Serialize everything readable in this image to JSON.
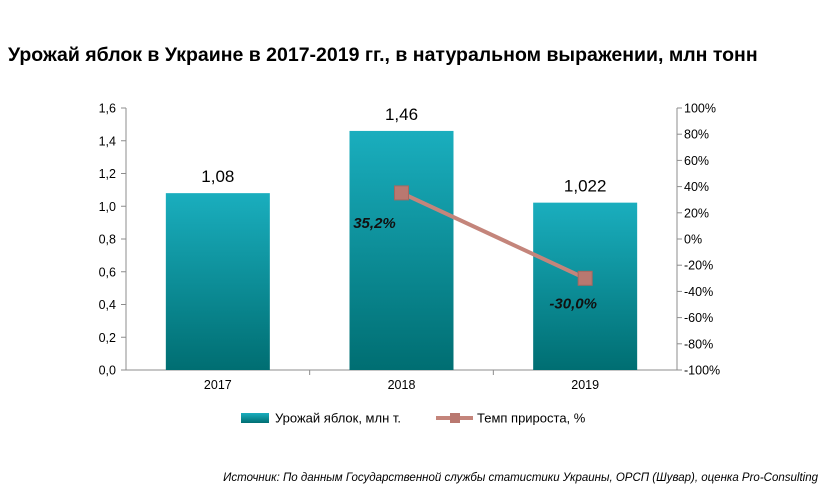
{
  "title": "Урожай яблок в Украине в 2017-2019 гг., в натуральном выражении, млн тонн",
  "source": "Источник: По данным Государственной службы статистики Украины, ОРСП (Шувар), оценка Pro-Consulting",
  "colors": {
    "bar_top": "#1aaebe",
    "bar_bottom": "#006e72",
    "line": "#c4857b",
    "marker": "#b97870",
    "axis": "#8c8c8c"
  },
  "chart_data": {
    "type": "bar",
    "categories": [
      "2017",
      "2018",
      "2019"
    ],
    "series": [
      {
        "name": "Урожай яблок, млн т.",
        "type": "bar",
        "axis": "left",
        "values": [
          1.08,
          1.46,
          1.022
        ],
        "labels": [
          "1,08",
          "1,46",
          "1,022"
        ]
      },
      {
        "name": "Темп прироста, %",
        "type": "line",
        "axis": "right",
        "values": [
          null,
          35.2,
          -30.0
        ],
        "labels": [
          "",
          "35,2%",
          "-30,0%"
        ]
      }
    ],
    "y_left": {
      "lim": [
        0,
        1.6
      ],
      "ticks": [
        "0,0",
        "0,2",
        "0,4",
        "0,6",
        "0,8",
        "1,0",
        "1,2",
        "1,4",
        "1,6"
      ]
    },
    "y_right": {
      "lim": [
        -100,
        100
      ],
      "ticks": [
        "-100%",
        "-80%",
        "-60%",
        "-40%",
        "-20%",
        "0%",
        "20%",
        "40%",
        "60%",
        "80%",
        "100%"
      ]
    },
    "grid": false,
    "legend_position": "bottom"
  }
}
